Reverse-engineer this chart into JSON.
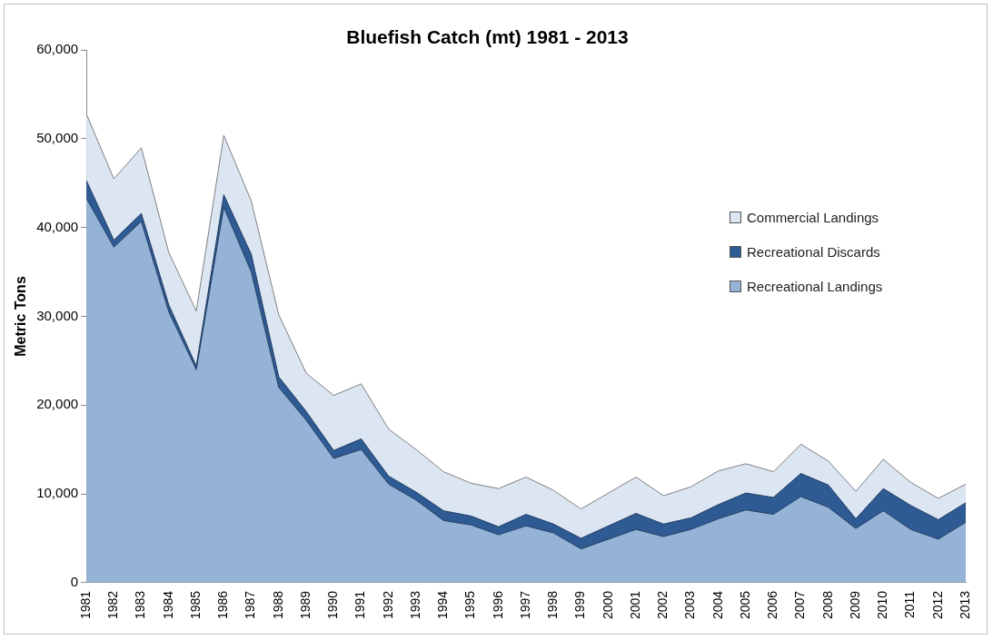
{
  "chart_data": {
    "type": "area",
    "title": "Bluefish Catch (mt) 1981 - 2013",
    "ylabel": "Metric Tons",
    "stacked": true,
    "grid": false,
    "legend": "right",
    "marker": "none",
    "categories": [
      "1981",
      "1982",
      "1983",
      "1984",
      "1985",
      "1986",
      "1987",
      "1988",
      "1989",
      "1990",
      "1991",
      "1992",
      "1993",
      "1994",
      "1995",
      "1996",
      "1997",
      "1998",
      "1999",
      "2000",
      "2001",
      "2002",
      "2003",
      "2004",
      "2005",
      "2006",
      "2007",
      "2008",
      "2009",
      "2010",
      "2011",
      "2012",
      "2013"
    ],
    "ylim": [
      0,
      60000
    ],
    "yticks": [
      {
        "value": 0,
        "label": "0"
      },
      {
        "value": 10000,
        "label": "10,000"
      },
      {
        "value": 20000,
        "label": "20,000"
      },
      {
        "value": 30000,
        "label": "30,000"
      },
      {
        "value": 40000,
        "label": "40,000"
      },
      {
        "value": 50000,
        "label": "50,000"
      },
      {
        "value": 60000,
        "label": "60,000"
      }
    ],
    "series": [
      {
        "name": "Recreational Landings",
        "color": "#95b3d7",
        "values": [
          43300,
          37800,
          40700,
          30500,
          24000,
          42300,
          35000,
          22000,
          18300,
          14000,
          15000,
          11100,
          9300,
          7000,
          6500,
          5400,
          6400,
          5600,
          3800,
          4900,
          6000,
          5200,
          6000,
          7200,
          8200,
          7700,
          9700,
          8500,
          6100,
          8100,
          6000,
          4900,
          6800
        ]
      },
      {
        "name": "Recreational Discards",
        "color": "#2f5b94",
        "values": [
          2000,
          800,
          900,
          800,
          400,
          1400,
          2000,
          1200,
          1000,
          900,
          1200,
          900,
          900,
          1100,
          1000,
          900,
          1300,
          1000,
          1200,
          1500,
          1800,
          1400,
          1300,
          1600,
          1900,
          1900,
          2600,
          2500,
          1100,
          2500,
          2700,
          2200,
          2200
        ]
      },
      {
        "name": "Commercial Landings",
        "color": "#dce6f2",
        "values": [
          7500,
          6900,
          7400,
          5900,
          6200,
          6700,
          6000,
          7000,
          4300,
          6200,
          6200,
          5300,
          4800,
          4400,
          3700,
          4300,
          4200,
          3800,
          3300,
          3700,
          4100,
          3200,
          3500,
          3800,
          3300,
          2900,
          3300,
          2700,
          3100,
          3300,
          2600,
          2400,
          2100
        ]
      }
    ]
  }
}
